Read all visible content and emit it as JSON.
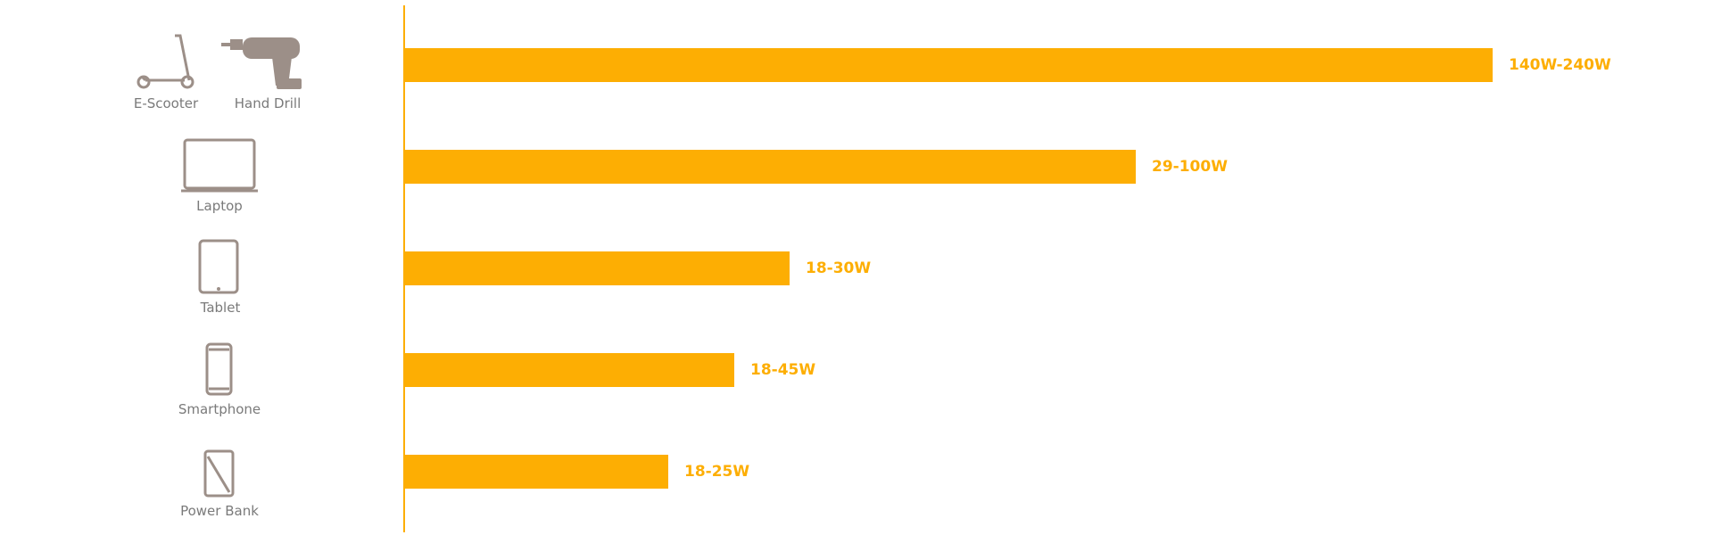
{
  "rows": [
    {
      "devices": [
        "E-Scooter",
        "Hand Drill"
      ],
      "label": "140W-240W"
    },
    {
      "devices": [
        "Laptop"
      ],
      "label": "29-100W"
    },
    {
      "devices": [
        "Tablet"
      ],
      "label": "18-30W"
    },
    {
      "devices": [
        "Smartphone"
      ],
      "label": "18-45W"
    },
    {
      "devices": [
        "Power Bank"
      ],
      "label": "18-25W"
    }
  ]
}
